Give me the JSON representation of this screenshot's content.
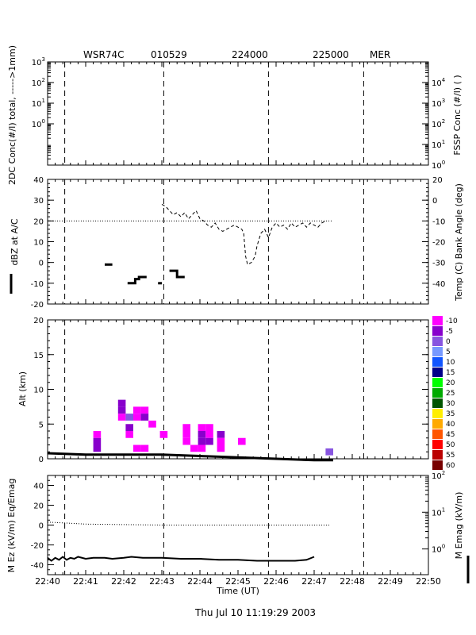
{
  "header": {
    "radar": "WSR74C",
    "date": "010529",
    "start": "224000",
    "end": "225000",
    "station": "MER"
  },
  "footer": {
    "timestamp": "Thu Jul 10 11:19:29 2003"
  },
  "chart_data": [
    {
      "type": "line",
      "panel": "concentration",
      "ylabel_left": "2DC Conc(#/l) total, ----->1mm)",
      "ylabel_right": "FSSP Conc (#/l) ( )",
      "yscale": "log",
      "ylim_left": [
        0.01,
        1000
      ],
      "left_ticks": [
        {
          "base": "10",
          "exp": "3",
          "value": 1000
        },
        {
          "base": "10",
          "exp": "2",
          "value": 100
        },
        {
          "base": "10",
          "exp": "1",
          "value": 10
        },
        {
          "base": "10",
          "exp": "0",
          "value": 1
        }
      ],
      "right_ticks": [
        {
          "base": "10",
          "exp": "4",
          "value": 10000
        },
        {
          "base": "10",
          "exp": "3",
          "value": 1000
        },
        {
          "base": "10",
          "exp": "2",
          "value": 100
        },
        {
          "base": "10",
          "exp": "1",
          "value": 10
        },
        {
          "base": "10",
          "exp": "0",
          "value": 1
        }
      ],
      "series": []
    },
    {
      "type": "line",
      "panel": "reflectivity-temperature",
      "ylabel_left": "dBZ at A/C",
      "ylabel_right": "Temp (C) Bank Angle (deg)",
      "ylim_left": [
        -20,
        40
      ],
      "ylim_right": [
        -40,
        20
      ],
      "left_ticks": [
        40,
        30,
        20,
        10,
        0,
        -10,
        -20
      ],
      "right_ticks": [
        20,
        0,
        -10,
        -20,
        -30,
        -40
      ],
      "right_tick_labels": [
        "20",
        "0",
        "-10",
        "-20",
        "-30",
        "-40"
      ],
      "temp_reference_dbz": 20,
      "temp_reference_end": 7.5,
      "bank_angle_dbz": [
        [
          3.0,
          28
        ],
        [
          3.1,
          27
        ],
        [
          3.2,
          25
        ],
        [
          3.3,
          23
        ],
        [
          3.4,
          24
        ],
        [
          3.5,
          22
        ],
        [
          3.6,
          24
        ],
        [
          3.7,
          21
        ],
        [
          3.8,
          23
        ],
        [
          3.9,
          25
        ],
        [
          4.0,
          21
        ],
        [
          4.1,
          20
        ],
        [
          4.2,
          18
        ],
        [
          4.3,
          17
        ],
        [
          4.4,
          19
        ],
        [
          4.5,
          16
        ],
        [
          4.6,
          15
        ],
        [
          4.7,
          16
        ],
        [
          4.8,
          17
        ],
        [
          4.9,
          18
        ],
        [
          5.0,
          17
        ],
        [
          5.1,
          16
        ],
        [
          5.15,
          14
        ],
        [
          5.2,
          3
        ],
        [
          5.25,
          -1
        ],
        [
          5.35,
          0
        ],
        [
          5.45,
          3
        ],
        [
          5.5,
          8
        ],
        [
          5.6,
          14
        ],
        [
          5.7,
          16
        ],
        [
          5.8,
          12
        ],
        [
          5.9,
          17
        ],
        [
          6.0,
          19
        ],
        [
          6.1,
          17
        ],
        [
          6.2,
          18
        ],
        [
          6.3,
          16
        ],
        [
          6.4,
          19
        ],
        [
          6.5,
          17
        ],
        [
          6.6,
          18
        ],
        [
          6.7,
          19
        ],
        [
          6.8,
          17
        ],
        [
          6.9,
          19
        ],
        [
          7.0,
          18
        ],
        [
          7.1,
          17
        ],
        [
          7.2,
          19
        ],
        [
          7.3,
          20
        ]
      ],
      "reflectivity_segments": [
        {
          "x": [
            1.5,
            1.7
          ],
          "dbz": [
            -1,
            -1
          ]
        },
        {
          "x": [
            2.1,
            2.3,
            2.3,
            2.4,
            2.4,
            2.6
          ],
          "dbz": [
            -10,
            -10,
            -8,
            -8,
            -7,
            -7
          ]
        },
        {
          "x": [
            2.9,
            3.0
          ],
          "dbz": [
            -10,
            -10
          ]
        },
        {
          "x": [
            3.2,
            3.4,
            3.4,
            3.6
          ],
          "dbz": [
            -4,
            -4,
            -7,
            -7
          ]
        }
      ]
    },
    {
      "type": "heatmap",
      "panel": "altitude-reflectivity",
      "ylabel": "Alt (km)",
      "ylim": [
        0,
        20
      ],
      "y_ticks": [
        20,
        15,
        10,
        5,
        0
      ],
      "colorbar": [
        {
          "label": "-10",
          "color": "#ff00ff"
        },
        {
          "label": "-5",
          "color": "#8800cc"
        },
        {
          "label": "0",
          "color": "#8855e0"
        },
        {
          "label": "5",
          "color": "#7799ff"
        },
        {
          "label": "10",
          "color": "#1155ff"
        },
        {
          "label": "15",
          "color": "#000088"
        },
        {
          "label": "20",
          "color": "#00ff00"
        },
        {
          "label": "25",
          "color": "#00aa00"
        },
        {
          "label": "30",
          "color": "#005500"
        },
        {
          "label": "35",
          "color": "#ffee00"
        },
        {
          "label": "40",
          "color": "#ffaa00"
        },
        {
          "label": "45",
          "color": "#ff5500"
        },
        {
          "label": "50",
          "color": "#ff0000"
        },
        {
          "label": "55",
          "color": "#bb0000"
        },
        {
          "label": "60",
          "color": "#770000"
        }
      ],
      "cells": [
        {
          "t": 1.3,
          "z": 3.5,
          "dbz": -10
        },
        {
          "t": 1.3,
          "z": 2.5,
          "dbz": -5
        },
        {
          "t": 1.3,
          "z": 1.5,
          "dbz": -5
        },
        {
          "t": 1.95,
          "z": 8.0,
          "dbz": -5
        },
        {
          "t": 1.95,
          "z": 7.0,
          "dbz": -5
        },
        {
          "t": 1.95,
          "z": 6.0,
          "dbz": -10
        },
        {
          "t": 2.15,
          "z": 6.0,
          "dbz": 0
        },
        {
          "t": 2.15,
          "z": 4.5,
          "dbz": -5
        },
        {
          "t": 2.15,
          "z": 3.5,
          "dbz": -10
        },
        {
          "t": 2.35,
          "z": 7.0,
          "dbz": -10
        },
        {
          "t": 2.35,
          "z": 6.0,
          "dbz": -10
        },
        {
          "t": 2.55,
          "z": 7.0,
          "dbz": -10
        },
        {
          "t": 2.55,
          "z": 6.0,
          "dbz": -5
        },
        {
          "t": 2.75,
          "z": 5.0,
          "dbz": -10
        },
        {
          "t": 2.35,
          "z": 1.5,
          "dbz": -10
        },
        {
          "t": 2.55,
          "z": 1.5,
          "dbz": -10
        },
        {
          "t": 3.05,
          "z": 3.5,
          "dbz": -10
        },
        {
          "t": 3.65,
          "z": 4.5,
          "dbz": -10
        },
        {
          "t": 3.65,
          "z": 3.5,
          "dbz": -10
        },
        {
          "t": 3.65,
          "z": 2.5,
          "dbz": -10
        },
        {
          "t": 3.85,
          "z": 1.5,
          "dbz": -10
        },
        {
          "t": 4.05,
          "z": 4.5,
          "dbz": -10
        },
        {
          "t": 4.05,
          "z": 3.5,
          "dbz": -5
        },
        {
          "t": 4.05,
          "z": 2.5,
          "dbz": -5
        },
        {
          "t": 4.05,
          "z": 1.5,
          "dbz": -10
        },
        {
          "t": 4.25,
          "z": 3.5,
          "dbz": -10
        },
        {
          "t": 4.25,
          "z": 2.5,
          "dbz": -5
        },
        {
          "t": 4.25,
          "z": 4.5,
          "dbz": -10
        },
        {
          "t": 4.55,
          "z": 3.5,
          "dbz": -5
        },
        {
          "t": 4.55,
          "z": 2.5,
          "dbz": -10
        },
        {
          "t": 4.55,
          "z": 1.5,
          "dbz": -10
        },
        {
          "t": 5.1,
          "z": 2.5,
          "dbz": -10
        },
        {
          "t": 7.4,
          "z": 1.0,
          "dbz": 0
        }
      ],
      "aircraft_altitude": [
        [
          0.0,
          0.8
        ],
        [
          0.5,
          0.7
        ],
        [
          1.0,
          0.6
        ],
        [
          1.5,
          0.6
        ],
        [
          2.0,
          0.6
        ],
        [
          2.5,
          0.6
        ],
        [
          3.0,
          0.6
        ],
        [
          3.5,
          0.5
        ],
        [
          4.0,
          0.4
        ],
        [
          4.5,
          0.3
        ],
        [
          5.0,
          0.2
        ],
        [
          5.5,
          0.1
        ],
        [
          6.0,
          0.0
        ],
        [
          6.5,
          -0.1
        ],
        [
          7.0,
          -0.2
        ],
        [
          7.5,
          -0.2
        ]
      ]
    },
    {
      "type": "line",
      "panel": "electric-field",
      "ylabel_left": "M Ez (kV/m) Eq/Emag",
      "ylabel_right": "M Emag (kV/m)",
      "ylim_left": [
        -50,
        50
      ],
      "left_ticks": [
        40,
        20,
        0,
        -20,
        -40
      ],
      "right_ticks": [
        {
          "base": "10",
          "exp": "2",
          "value": 100
        },
        {
          "base": "10",
          "exp": "1",
          "value": 10
        },
        {
          "base": "10",
          "exp": "0",
          "value": 1
        }
      ],
      "ez_ratio_line": [
        [
          0.0,
          3
        ],
        [
          0.5,
          2
        ],
        [
          1.0,
          1
        ],
        [
          2.0,
          0.5
        ],
        [
          3.0,
          0
        ],
        [
          4.0,
          0
        ],
        [
          5.0,
          0
        ],
        [
          6.0,
          0
        ],
        [
          7.0,
          0
        ],
        [
          7.4,
          0
        ]
      ],
      "emag_line": [
        [
          0.0,
          -33
        ],
        [
          0.1,
          -36
        ],
        [
          0.2,
          -33
        ],
        [
          0.3,
          -35
        ],
        [
          0.4,
          -32
        ],
        [
          0.5,
          -35
        ],
        [
          0.6,
          -33
        ],
        [
          0.7,
          -34
        ],
        [
          0.8,
          -32
        ],
        [
          1.0,
          -34
        ],
        [
          1.2,
          -33
        ],
        [
          1.5,
          -33
        ],
        [
          1.7,
          -34
        ],
        [
          2.0,
          -33
        ],
        [
          2.2,
          -32
        ],
        [
          2.5,
          -33
        ],
        [
          3.0,
          -33
        ],
        [
          3.5,
          -34
        ],
        [
          4.0,
          -34
        ],
        [
          4.5,
          -35
        ],
        [
          5.0,
          -35
        ],
        [
          5.5,
          -36
        ],
        [
          6.0,
          -36
        ],
        [
          6.5,
          -36
        ],
        [
          6.8,
          -35
        ],
        [
          7.0,
          -32
        ]
      ]
    }
  ],
  "time_axis": {
    "label": "Time (UT)",
    "ticks": [
      "22:40",
      "22:41",
      "22:42",
      "22:43",
      "22:44",
      "22:45",
      "22:46",
      "22:47",
      "22:48",
      "22:49",
      "22:50"
    ],
    "xlim": [
      0,
      10
    ],
    "marker_minutes": [
      0.45,
      3.05,
      5.8,
      8.3
    ]
  }
}
